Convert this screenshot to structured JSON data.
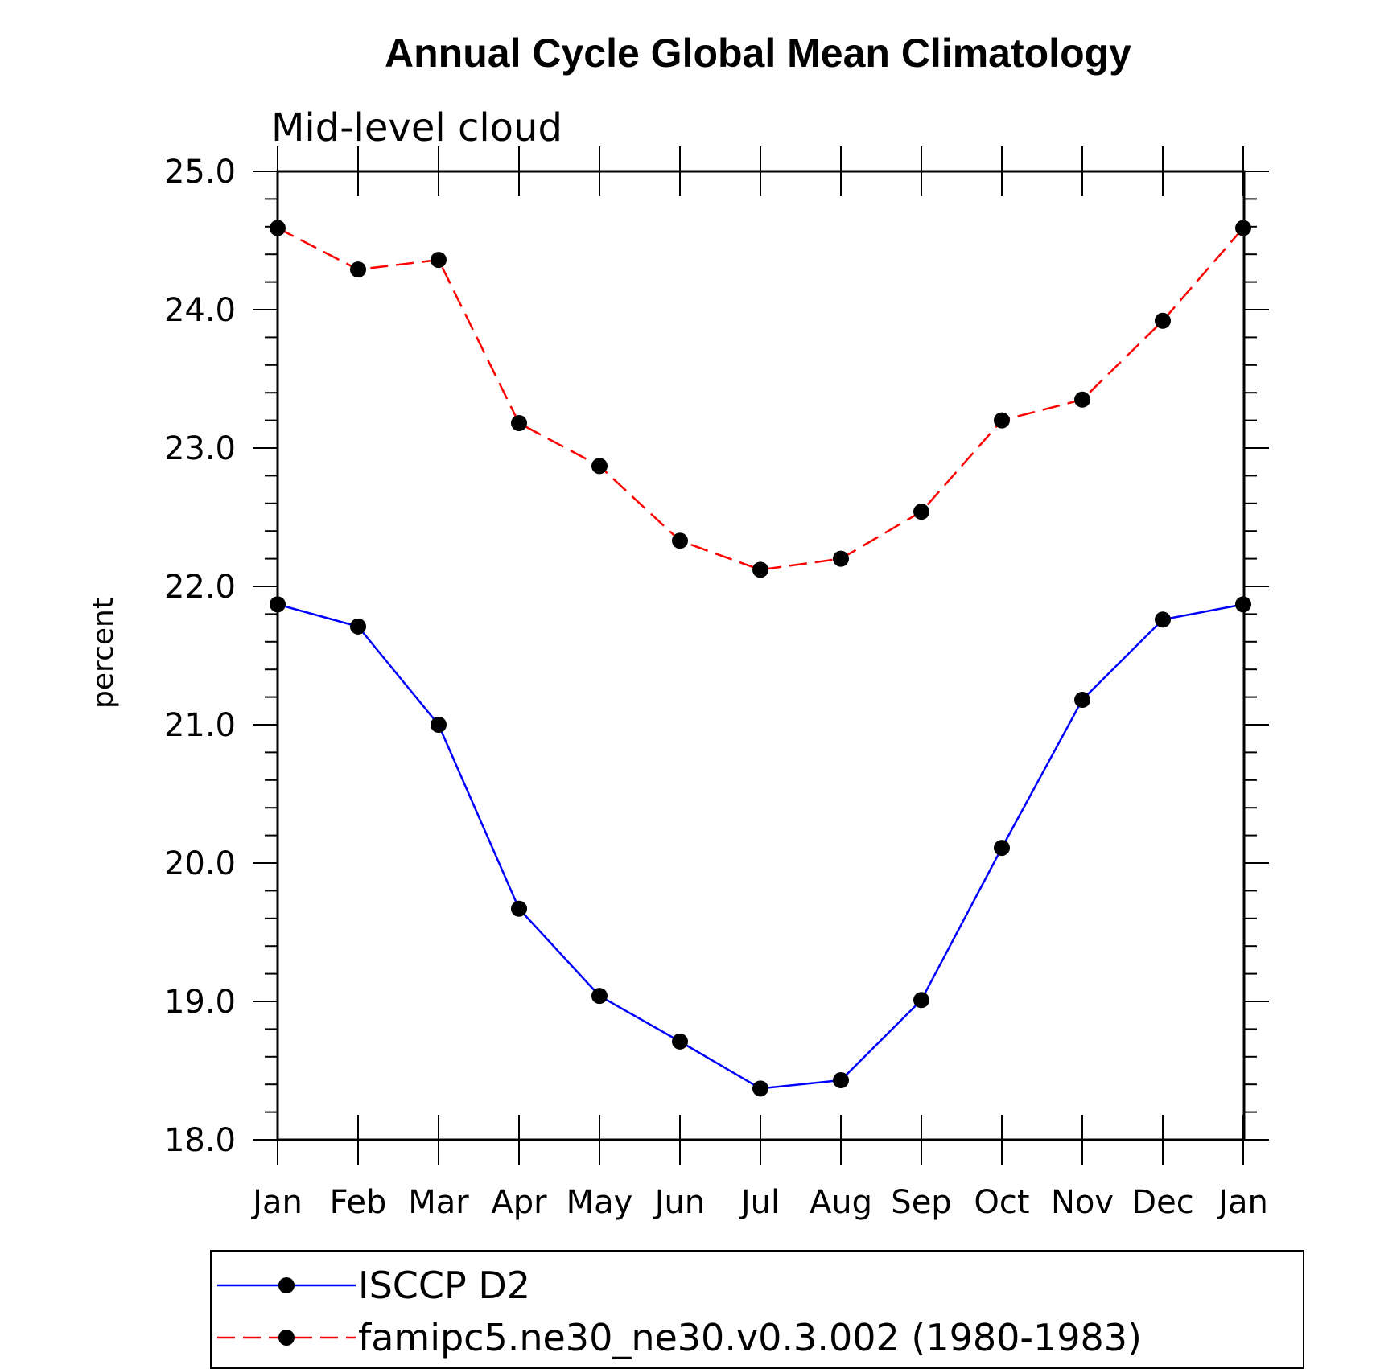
{
  "chart_data": {
    "type": "line",
    "title": "Annual Cycle Global Mean Climatology",
    "subtitle": "Mid-level cloud",
    "ylabel": "percent",
    "categories": [
      "Jan",
      "Feb",
      "Mar",
      "Apr",
      "May",
      "Jun",
      "Jul",
      "Aug",
      "Sep",
      "Oct",
      "Nov",
      "Dec",
      "Jan"
    ],
    "ylim": [
      18.0,
      25.0
    ],
    "yticks": [
      "18.0",
      "19.0",
      "20.0",
      "21.0",
      "22.0",
      "23.0",
      "24.0",
      "25.0"
    ],
    "grid": false,
    "legend_position": "bottom",
    "series": [
      {
        "name": "ISCCP D2",
        "color": "#0000ff",
        "line_style": "solid",
        "marker": "filled-circle",
        "values": [
          21.87,
          21.71,
          21.0,
          19.67,
          19.04,
          18.71,
          18.37,
          18.43,
          19.01,
          20.11,
          21.18,
          21.76,
          21.87
        ]
      },
      {
        "name": "famipc5.ne30_ne30.v0.3.002 (1980-1983)",
        "color": "#ff0000",
        "line_style": "dashed",
        "marker": "filled-circle",
        "values": [
          24.59,
          24.29,
          24.36,
          23.18,
          22.87,
          22.33,
          22.12,
          22.2,
          22.54,
          23.2,
          23.35,
          23.92,
          24.59
        ]
      }
    ]
  }
}
